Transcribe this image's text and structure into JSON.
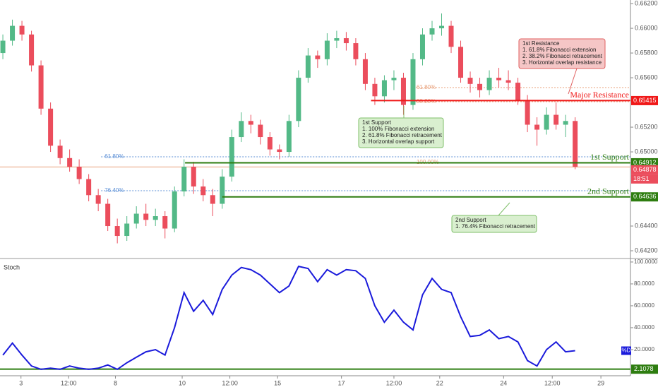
{
  "chart_data": [
    {
      "type": "candlestick",
      "up_color": "#53b987",
      "down_color": "#eb4d5c",
      "xlim": [
        -0.3,
        65.8
      ],
      "ylim": [
        0.64143,
        0.66229
      ],
      "yticks": [
        {
          "value": 0.642,
          "label": "0.64200"
        },
        {
          "value": 0.644,
          "label": "0.64400"
        },
        {
          "value": 0.65,
          "label": "0.65000"
        },
        {
          "value": 0.652,
          "label": "0.65200"
        },
        {
          "value": 0.656,
          "label": "0.65600"
        },
        {
          "value": 0.658,
          "label": "0.65800"
        },
        {
          "value": 0.66,
          "label": "0.66000"
        },
        {
          "value": 0.662,
          "label": "0.66200"
        }
      ],
      "candles": [
        [
          0.658,
          0.6595,
          0.6575,
          0.659
        ],
        [
          0.659,
          0.6607,
          0.6586,
          0.6602
        ],
        [
          0.6602,
          0.6606,
          0.659,
          0.6595
        ],
        [
          0.6595,
          0.6598,
          0.6565,
          0.657
        ],
        [
          0.657,
          0.6574,
          0.653,
          0.6535
        ],
        [
          0.6535,
          0.654,
          0.65,
          0.6505
        ],
        [
          0.6505,
          0.651,
          0.649,
          0.6495
        ],
        [
          0.6495,
          0.6502,
          0.6484,
          0.6488
        ],
        [
          0.6488,
          0.6494,
          0.6474,
          0.6478
        ],
        [
          0.6478,
          0.6482,
          0.646,
          0.6465
        ],
        [
          0.6465,
          0.647,
          0.6452,
          0.6458
        ],
        [
          0.6458,
          0.6462,
          0.6436,
          0.644
        ],
        [
          0.644,
          0.6446,
          0.6426,
          0.6432
        ],
        [
          0.6432,
          0.6448,
          0.6428,
          0.6442
        ],
        [
          0.6442,
          0.6456,
          0.6438,
          0.645
        ],
        [
          0.645,
          0.6458,
          0.644,
          0.6445
        ],
        [
          0.6445,
          0.6454,
          0.644,
          0.6448
        ],
        [
          0.6448,
          0.6452,
          0.643,
          0.6438
        ],
        [
          0.6438,
          0.6472,
          0.6435,
          0.6468
        ],
        [
          0.6468,
          0.6494,
          0.6464,
          0.6488
        ],
        [
          0.6488,
          0.6492,
          0.6466,
          0.6472
        ],
        [
          0.6472,
          0.6478,
          0.646,
          0.6465
        ],
        [
          0.6465,
          0.647,
          0.6448,
          0.6458
        ],
        [
          0.6458,
          0.6486,
          0.6454,
          0.648
        ],
        [
          0.648,
          0.6518,
          0.6476,
          0.6512
        ],
        [
          0.6512,
          0.6532,
          0.6508,
          0.6525
        ],
        [
          0.6525,
          0.653,
          0.6515,
          0.6522
        ],
        [
          0.6522,
          0.6526,
          0.6506,
          0.6512
        ],
        [
          0.6512,
          0.6516,
          0.6497,
          0.6502
        ],
        [
          0.6502,
          0.6506,
          0.6494,
          0.65
        ],
        [
          0.65,
          0.653,
          0.6496,
          0.6525
        ],
        [
          0.6525,
          0.6566,
          0.652,
          0.656
        ],
        [
          0.656,
          0.6584,
          0.6556,
          0.6578
        ],
        [
          0.6578,
          0.6582,
          0.6568,
          0.6575
        ],
        [
          0.6575,
          0.6596,
          0.657,
          0.659
        ],
        [
          0.659,
          0.6598,
          0.6584,
          0.6592
        ],
        [
          0.6592,
          0.6597,
          0.6582,
          0.6588
        ],
        [
          0.6588,
          0.6592,
          0.657,
          0.6575
        ],
        [
          0.6575,
          0.658,
          0.655,
          0.6555
        ],
        [
          0.6555,
          0.656,
          0.6538,
          0.6545
        ],
        [
          0.6545,
          0.6562,
          0.654,
          0.6558
        ],
        [
          0.6558,
          0.6566,
          0.655,
          0.656
        ],
        [
          0.656,
          0.6564,
          0.653,
          0.6538
        ],
        [
          0.6538,
          0.658,
          0.6534,
          0.6575
        ],
        [
          0.6575,
          0.66,
          0.657,
          0.6595
        ],
        [
          0.6595,
          0.6606,
          0.659,
          0.66
        ],
        [
          0.66,
          0.6612,
          0.6594,
          0.6602
        ],
        [
          0.6602,
          0.6606,
          0.658,
          0.6585
        ],
        [
          0.6585,
          0.659,
          0.6556,
          0.656
        ],
        [
          0.656,
          0.6565,
          0.6548,
          0.6555
        ],
        [
          0.6555,
          0.656,
          0.6544,
          0.655
        ],
        [
          0.655,
          0.6566,
          0.6546,
          0.656
        ],
        [
          0.656,
          0.6568,
          0.6552,
          0.6558
        ],
        [
          0.6558,
          0.6566,
          0.655,
          0.6556
        ],
        [
          0.6556,
          0.656,
          0.6538,
          0.6542
        ],
        [
          0.6542,
          0.6546,
          0.6516,
          0.6522
        ],
        [
          0.6522,
          0.6528,
          0.6505,
          0.6518
        ],
        [
          0.6518,
          0.6536,
          0.6514,
          0.653
        ],
        [
          0.653,
          0.654,
          0.6518,
          0.6522
        ],
        [
          0.6522,
          0.653,
          0.6512,
          0.6525
        ],
        [
          0.6525,
          0.6528,
          0.6486,
          0.6488
        ]
      ],
      "levels": [
        {
          "name": "Major Resistance",
          "value": 0.65415,
          "label": "0.65415",
          "color": "#f01818",
          "start": 38.6
        },
        {
          "name": "1st Support",
          "value": 0.64912,
          "label": "0.64912",
          "color": "#2e7d10",
          "start": 19.1
        },
        {
          "name": "2nd Support",
          "value": 0.64636,
          "label": "0.64636",
          "color": "#2e7d10",
          "start": 23
        }
      ],
      "current_price": {
        "value": 0.64878,
        "label": "0.64878",
        "time": "18:51",
        "color": "#e8a07a"
      },
      "fib_lines": [
        {
          "label": "61.80%",
          "value": 0.6496,
          "color": "#5b8fd6",
          "start": 10.3
        },
        {
          "label": "76.40%",
          "value": 0.64686,
          "color": "#5b8fd6",
          "start": 10.3
        },
        {
          "label": "61.80%",
          "value": 0.6552,
          "color": "#e8a07a",
          "start": 43
        },
        {
          "label": "38.20%",
          "value": 0.65406,
          "color": "#e8a07a",
          "start": 43
        },
        {
          "label": "100.00%",
          "value": 0.64914,
          "color": "#e8a07a",
          "start": 43
        }
      ],
      "annotations": [
        {
          "lines": [
            "1st Resistance",
            "1. 61.8% Fibonacci extension",
            "2. 38.2% Fibonacci retracement",
            "3. Horizontal overlap resistance"
          ],
          "color": "#f5c6c6",
          "border": "#e06060"
        },
        {
          "lines": [
            "1st Support",
            "1. 100% Fibonacci extension",
            "2. 61.8% Fibonacci retracement",
            "3. Horizontal overlap support"
          ],
          "color": "#d9efcf",
          "border": "#7fbf6a"
        },
        {
          "lines": [
            "2nd Support",
            "1. 76.4% Fibonacci retracement"
          ],
          "color": "#d9efcf",
          "border": "#7fbf6a"
        }
      ]
    },
    {
      "type": "line",
      "title": "Stoch",
      "xlim": [
        -0.3,
        65.8
      ],
      "ylim": [
        -3.9,
        101.9
      ],
      "yticks": [
        {
          "value": 100,
          "label": "100.0000"
        },
        {
          "value": 80,
          "label": "80.0000"
        },
        {
          "value": 60,
          "label": "60.0000"
        },
        {
          "value": 40,
          "label": "40.0000"
        },
        {
          "value": 20,
          "label": "20.0000"
        }
      ],
      "xticks": [
        {
          "value": 1.9,
          "label": "3"
        },
        {
          "value": 6.9,
          "label": "12:00"
        },
        {
          "value": 11.8,
          "label": "8"
        },
        {
          "value": 18.8,
          "label": "10"
        },
        {
          "value": 23.8,
          "label": "12:00"
        },
        {
          "value": 28.8,
          "label": "15"
        },
        {
          "value": 35.5,
          "label": "17"
        },
        {
          "value": 41,
          "label": "12:00"
        },
        {
          "value": 45.8,
          "label": "22"
        },
        {
          "value": 52.5,
          "label": "24"
        },
        {
          "value": 57.6,
          "label": "12:00"
        },
        {
          "value": 62.7,
          "label": "29"
        }
      ],
      "series": [
        {
          "name": "%D",
          "color": "#1a1adb",
          "values": [
            15,
            26,
            15,
            5,
            2,
            3,
            2,
            5,
            3,
            2,
            3,
            6,
            2,
            8,
            13,
            18,
            20,
            15,
            40,
            72,
            55,
            65,
            52,
            75,
            88,
            95,
            93,
            88,
            80,
            72,
            78,
            96,
            94,
            82,
            93,
            88,
            93,
            92,
            85,
            60,
            45,
            56,
            45,
            38,
            70,
            85,
            75,
            72,
            50,
            32,
            33,
            38,
            30,
            32,
            27,
            10,
            5,
            20,
            27,
            18,
            19
          ]
        }
      ],
      "level": {
        "value": 2.1078,
        "label": "2.1078",
        "color": "#2e7d10"
      }
    }
  ]
}
